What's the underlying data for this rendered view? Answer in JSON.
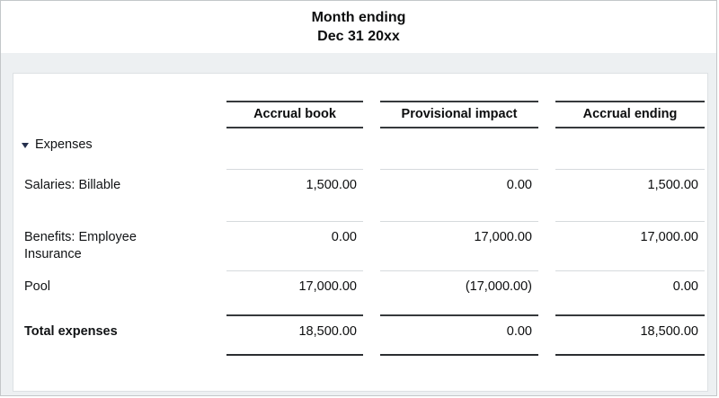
{
  "header": {
    "title_line1": "Month ending",
    "title_line2": "Dec 31 20xx"
  },
  "table": {
    "columns": [
      "Accrual book",
      "Provisional impact",
      "Accrual ending"
    ],
    "group": {
      "label": "Expenses",
      "collapse_icon": "triangle-down-icon",
      "state": "expanded"
    },
    "rows": [
      {
        "label": "Salaries: Billable",
        "values": [
          "1,500.00",
          "0.00",
          "1,500.00"
        ]
      },
      {
        "label": "Benefits: Employee Insurance",
        "values": [
          "0.00",
          "17,000.00",
          "17,000.00"
        ]
      },
      {
        "label": "Pool",
        "values": [
          "17,000.00",
          "(17,000.00)",
          "0.00"
        ]
      }
    ],
    "total": {
      "label": "Total expenses",
      "values": [
        "18,500.00",
        "0.00",
        "18,500.00"
      ]
    }
  },
  "colors": {
    "page_background": "#edf0f2",
    "card_background": "#ffffff",
    "card_border": "#dde1e4",
    "dark_rule": "#36393c",
    "light_separator": "#d6dadd",
    "triangle_icon": "#25304d",
    "text": "#0c0d0e"
  }
}
